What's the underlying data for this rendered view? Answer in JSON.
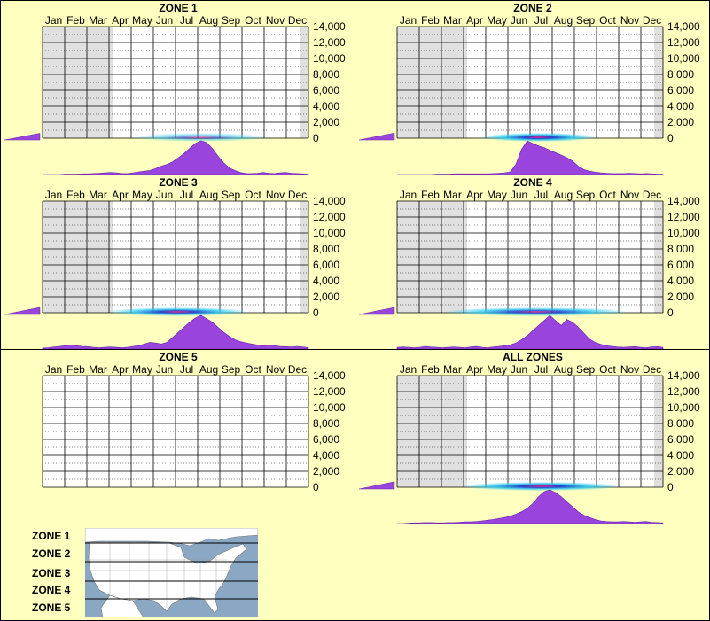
{
  "chart_data": {
    "type": "area",
    "months": [
      "Jan",
      "Feb",
      "Mar",
      "Apr",
      "May",
      "Jun",
      "Jul",
      "Aug",
      "Sep",
      "Oct",
      "Nov",
      "Dec"
    ],
    "y_ticks": [
      "14,000",
      "12,000",
      "10,000",
      "8,000",
      "6,000",
      "4,000",
      "2,000",
      "0"
    ],
    "ylim": [
      0,
      14000
    ],
    "panels": [
      {
        "title": "ZONE 1",
        "has_data": true,
        "shaded_months": [
          0,
          1,
          2
        ],
        "left_bar": 0.35,
        "band": {
          "center": 7.1,
          "width": 3.0,
          "peak": 0.55
        },
        "curve": [
          0,
          0,
          0,
          0,
          0.01,
          0.01,
          0.01,
          0.02,
          0.02,
          0.03,
          0.04,
          0.05,
          0.06,
          0.05,
          0.03,
          0.03,
          0.05,
          0.08,
          0.1,
          0.12,
          0.18,
          0.25,
          0.3,
          0.38,
          0.5,
          0.62,
          0.78,
          0.92,
          1.0,
          0.95,
          0.78,
          0.55,
          0.35,
          0.2,
          0.12,
          0.06,
          0.03,
          0.03,
          0.04,
          0.06,
          0.04,
          0.03,
          0.05,
          0.06,
          0.04,
          0.03,
          0.02,
          0.01
        ]
      },
      {
        "title": "ZONE 2",
        "has_data": true,
        "shaded_months": [
          0,
          1,
          2
        ],
        "left_bar": 0.38,
        "band": {
          "center": 6.4,
          "width": 2.6,
          "peak": 1.0
        },
        "curve": [
          0,
          0,
          0,
          0,
          0,
          0,
          0,
          0.01,
          0.01,
          0.01,
          0.02,
          0.02,
          0.02,
          0.02,
          0.02,
          0.02,
          0.02,
          0.03,
          0.04,
          0.05,
          0.08,
          0.3,
          0.75,
          1.0,
          0.92,
          0.85,
          0.8,
          0.72,
          0.65,
          0.58,
          0.5,
          0.4,
          0.25,
          0.15,
          0.1,
          0.07,
          0.05,
          0.04,
          0.03,
          0.03,
          0.03,
          0.04,
          0.03,
          0.02,
          0.03,
          0.02,
          0.01,
          0.01
        ]
      },
      {
        "title": "ZONE 3",
        "has_data": true,
        "shaded_months": [
          0,
          1,
          2
        ],
        "left_bar": 0.4,
        "band": {
          "center": 6.1,
          "width": 3.2,
          "peak": 0.95
        },
        "curve": [
          0.03,
          0.04,
          0.06,
          0.08,
          0.1,
          0.12,
          0.1,
          0.08,
          0.07,
          0.05,
          0.04,
          0.05,
          0.06,
          0.05,
          0.04,
          0.05,
          0.08,
          0.1,
          0.15,
          0.2,
          0.18,
          0.15,
          0.2,
          0.35,
          0.5,
          0.65,
          0.8,
          0.92,
          1.0,
          0.9,
          0.8,
          0.65,
          0.5,
          0.38,
          0.28,
          0.22,
          0.18,
          0.15,
          0.12,
          0.1,
          0.12,
          0.1,
          0.08,
          0.07,
          0.06,
          0.08,
          0.06,
          0.04
        ]
      },
      {
        "title": "ZONE 4",
        "has_data": true,
        "shaded_months": [
          0,
          1,
          2
        ],
        "left_bar": 0.4,
        "band": {
          "center": 6.3,
          "width": 4.2,
          "peak": 0.9
        },
        "curve": [
          0.05,
          0.06,
          0.05,
          0.04,
          0.05,
          0.08,
          0.06,
          0.05,
          0.04,
          0.05,
          0.06,
          0.05,
          0.04,
          0.06,
          0.08,
          0.05,
          0.04,
          0.06,
          0.08,
          0.1,
          0.12,
          0.18,
          0.28,
          0.4,
          0.55,
          0.7,
          0.85,
          1.0,
          0.85,
          0.7,
          0.88,
          0.8,
          0.65,
          0.48,
          0.3,
          0.2,
          0.14,
          0.1,
          0.08,
          0.06,
          0.05,
          0.06,
          0.07,
          0.05,
          0.04,
          0.06,
          0.07,
          0.05
        ]
      },
      {
        "title": "ZONE 5",
        "has_data": false,
        "shaded_months": [],
        "left_bar": 0,
        "band": null,
        "curve": []
      },
      {
        "title": "ALL ZONES",
        "has_data": true,
        "shaded_months": [
          0,
          1,
          2
        ],
        "left_bar": 0.42,
        "band": {
          "center": 6.5,
          "width": 3.6,
          "peak": 1.0
        },
        "curve": [
          0,
          0,
          0.01,
          0.02,
          0.02,
          0.03,
          0.03,
          0.02,
          0.02,
          0.03,
          0.03,
          0.04,
          0.05,
          0.05,
          0.06,
          0.08,
          0.1,
          0.12,
          0.15,
          0.18,
          0.22,
          0.28,
          0.35,
          0.45,
          0.6,
          0.8,
          0.95,
          1.0,
          0.92,
          0.8,
          0.65,
          0.5,
          0.35,
          0.25,
          0.18,
          0.12,
          0.08,
          0.06,
          0.05,
          0.05,
          0.06,
          0.05,
          0.04,
          0.05,
          0.06,
          0.04,
          0.03,
          0.02
        ]
      }
    ]
  },
  "legend": {
    "zones": [
      "ZONE 1",
      "ZONE 2",
      "ZONE 3",
      "ZONE 4",
      "ZONE 5"
    ]
  },
  "colors": {
    "background": "#ffffc0",
    "plot_background": "#ffffff",
    "shaded_month": "#e0e0e0",
    "area_fill": "#9944dd",
    "area_stroke": "#6622aa",
    "band_center": "#ff2288",
    "band_mid": "#2244cc",
    "band_edge": "#33ccee",
    "map_water": "#8aa8c4",
    "map_land": "#ffffff"
  }
}
